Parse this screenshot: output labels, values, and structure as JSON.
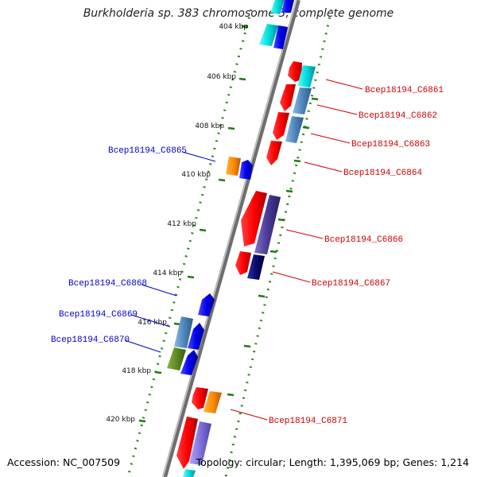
{
  "title": "Burkholderia sp. 383 chromosome 3, complete genome",
  "footer": {
    "accession": "Accession: NC_007509",
    "summary": "Topology: circular; Length: 1,395,069 bp; Genes: 1,214"
  },
  "scale_labels": [
    "404 kbp",
    "406 kbp",
    "408 kbp",
    "410 kbp",
    "412 kbp",
    "414 kbp",
    "416 kbp",
    "418 kbp",
    "420 kbp"
  ],
  "genes": {
    "reverse": [
      "Bcep18194_C6865",
      "Bcep18194_C6868",
      "Bcep18194_C6869",
      "Bcep18194_C6870"
    ],
    "forward": [
      "Bcep18194_C6861",
      "Bcep18194_C6862",
      "Bcep18194_C6863",
      "Bcep18194_C6864",
      "Bcep18194_C6866",
      "Bcep18194_C6867",
      "Bcep18194_C6871"
    ]
  },
  "colors": {
    "forward_label": "#cc0000",
    "reverse_label": "#0000cc",
    "backbone": "#888888",
    "dotted_track": "#2e8b20"
  }
}
